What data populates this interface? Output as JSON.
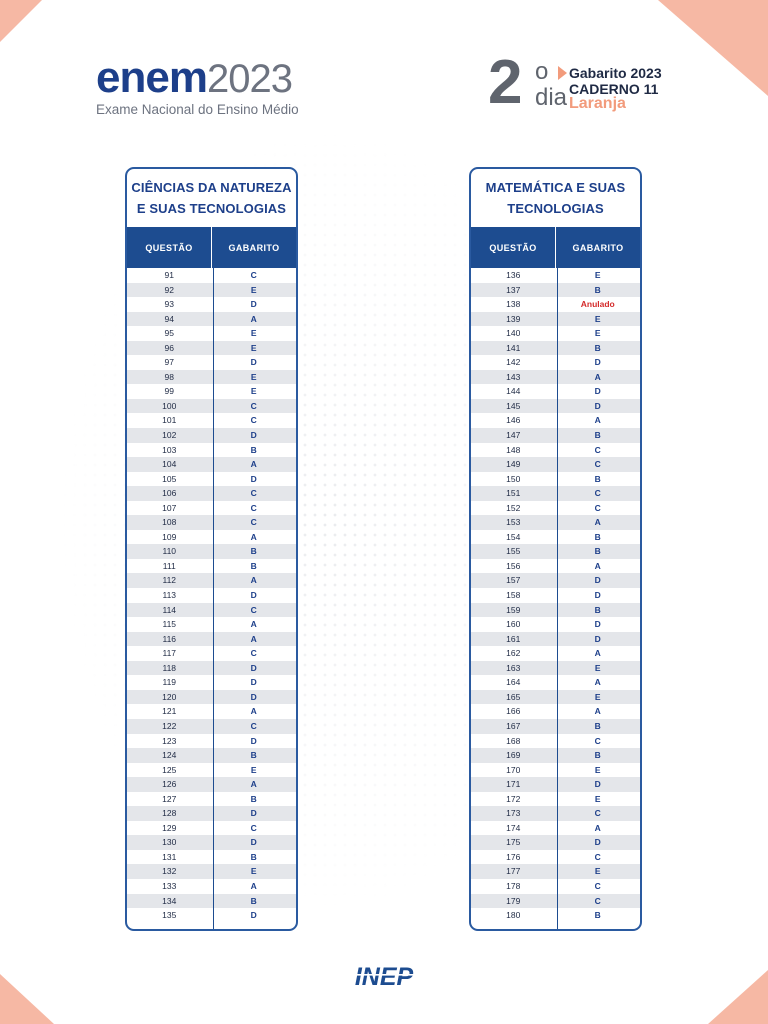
{
  "logo": {
    "brand": "enem",
    "year": "2023",
    "subtitle": "Exame Nacional do Ensino Médio"
  },
  "day": {
    "number": "2",
    "ordinal": "o",
    "word": "dia",
    "gabarito": "Gabarito 2023",
    "caderno": "CADERNO 11",
    "color_name": "Laranja"
  },
  "left_panel": {
    "title": "CIÊNCIAS DA NATUREZA\nE SUAS TECNOLOGIAS",
    "col_question": "QUESTÃO",
    "col_answer": "GABARITO",
    "rows": [
      {
        "q": "91",
        "a": "C"
      },
      {
        "q": "92",
        "a": "E"
      },
      {
        "q": "93",
        "a": "D"
      },
      {
        "q": "94",
        "a": "A"
      },
      {
        "q": "95",
        "a": "E"
      },
      {
        "q": "96",
        "a": "E"
      },
      {
        "q": "97",
        "a": "D"
      },
      {
        "q": "98",
        "a": "E"
      },
      {
        "q": "99",
        "a": "E"
      },
      {
        "q": "100",
        "a": "C"
      },
      {
        "q": "101",
        "a": "C"
      },
      {
        "q": "102",
        "a": "D"
      },
      {
        "q": "103",
        "a": "B"
      },
      {
        "q": "104",
        "a": "A"
      },
      {
        "q": "105",
        "a": "D"
      },
      {
        "q": "106",
        "a": "C"
      },
      {
        "q": "107",
        "a": "C"
      },
      {
        "q": "108",
        "a": "C"
      },
      {
        "q": "109",
        "a": "A"
      },
      {
        "q": "110",
        "a": "B"
      },
      {
        "q": "111",
        "a": "B"
      },
      {
        "q": "112",
        "a": "A"
      },
      {
        "q": "113",
        "a": "D"
      },
      {
        "q": "114",
        "a": "C"
      },
      {
        "q": "115",
        "a": "A"
      },
      {
        "q": "116",
        "a": "A"
      },
      {
        "q": "117",
        "a": "C"
      },
      {
        "q": "118",
        "a": "D"
      },
      {
        "q": "119",
        "a": "D"
      },
      {
        "q": "120",
        "a": "D"
      },
      {
        "q": "121",
        "a": "A"
      },
      {
        "q": "122",
        "a": "C"
      },
      {
        "q": "123",
        "a": "D"
      },
      {
        "q": "124",
        "a": "B"
      },
      {
        "q": "125",
        "a": "E"
      },
      {
        "q": "126",
        "a": "A"
      },
      {
        "q": "127",
        "a": "B"
      },
      {
        "q": "128",
        "a": "D"
      },
      {
        "q": "129",
        "a": "C"
      },
      {
        "q": "130",
        "a": "D"
      },
      {
        "q": "131",
        "a": "B"
      },
      {
        "q": "132",
        "a": "E"
      },
      {
        "q": "133",
        "a": "A"
      },
      {
        "q": "134",
        "a": "B"
      },
      {
        "q": "135",
        "a": "D"
      }
    ]
  },
  "right_panel": {
    "title": "MATEMÁTICA E SUAS\nTECNOLOGIAS",
    "col_question": "QUESTÃO",
    "col_answer": "GABARITO",
    "rows": [
      {
        "q": "136",
        "a": "E"
      },
      {
        "q": "137",
        "a": "B"
      },
      {
        "q": "138",
        "a": "Anulado"
      },
      {
        "q": "139",
        "a": "E"
      },
      {
        "q": "140",
        "a": "E"
      },
      {
        "q": "141",
        "a": "B"
      },
      {
        "q": "142",
        "a": "D"
      },
      {
        "q": "143",
        "a": "A"
      },
      {
        "q": "144",
        "a": "D"
      },
      {
        "q": "145",
        "a": "D"
      },
      {
        "q": "146",
        "a": "A"
      },
      {
        "q": "147",
        "a": "B"
      },
      {
        "q": "148",
        "a": "C"
      },
      {
        "q": "149",
        "a": "C"
      },
      {
        "q": "150",
        "a": "B"
      },
      {
        "q": "151",
        "a": "C"
      },
      {
        "q": "152",
        "a": "C"
      },
      {
        "q": "153",
        "a": "A"
      },
      {
        "q": "154",
        "a": "B"
      },
      {
        "q": "155",
        "a": "B"
      },
      {
        "q": "156",
        "a": "A"
      },
      {
        "q": "157",
        "a": "D"
      },
      {
        "q": "158",
        "a": "D"
      },
      {
        "q": "159",
        "a": "B"
      },
      {
        "q": "160",
        "a": "D"
      },
      {
        "q": "161",
        "a": "D"
      },
      {
        "q": "162",
        "a": "A"
      },
      {
        "q": "163",
        "a": "E"
      },
      {
        "q": "164",
        "a": "A"
      },
      {
        "q": "165",
        "a": "E"
      },
      {
        "q": "166",
        "a": "A"
      },
      {
        "q": "167",
        "a": "B"
      },
      {
        "q": "168",
        "a": "C"
      },
      {
        "q": "169",
        "a": "B"
      },
      {
        "q": "170",
        "a": "E"
      },
      {
        "q": "171",
        "a": "D"
      },
      {
        "q": "172",
        "a": "E"
      },
      {
        "q": "173",
        "a": "C"
      },
      {
        "q": "174",
        "a": "A"
      },
      {
        "q": "175",
        "a": "D"
      },
      {
        "q": "176",
        "a": "C"
      },
      {
        "q": "177",
        "a": "E"
      },
      {
        "q": "178",
        "a": "C"
      },
      {
        "q": "179",
        "a": "C"
      },
      {
        "q": "180",
        "a": "B"
      }
    ]
  },
  "footer": {
    "logo_text": "INEP"
  },
  "colors": {
    "brand_blue": "#1d4c90",
    "accent_orange": "#f29b7c",
    "void_red": "#d42a2a"
  }
}
